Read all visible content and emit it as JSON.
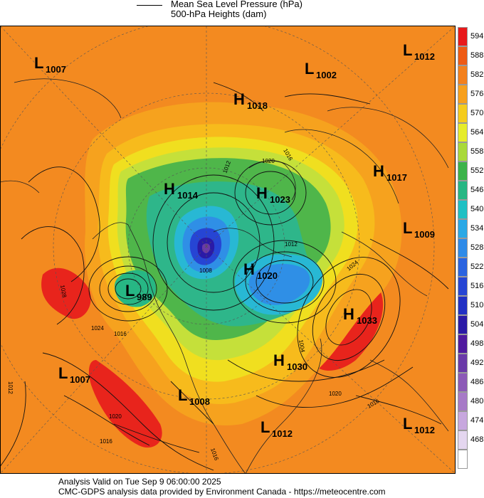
{
  "legend": {
    "line_label": "Mean Sea Level Pressure (hPa)",
    "fill_label": "500-hPa Heights (dam)"
  },
  "colorbar": {
    "levels": [
      {
        "label": "594",
        "color": "#e8191b"
      },
      {
        "label": "588",
        "color": "#ee5a14"
      },
      {
        "label": "582",
        "color": "#f3801c"
      },
      {
        "label": "576",
        "color": "#f7a01c"
      },
      {
        "label": "570",
        "color": "#f5cc1d"
      },
      {
        "label": "564",
        "color": "#e6ec2a"
      },
      {
        "label": "558",
        "color": "#a9d93a"
      },
      {
        "label": "552",
        "color": "#3bb34a"
      },
      {
        "label": "546",
        "color": "#27b784"
      },
      {
        "label": "540",
        "color": "#1fc0c4"
      },
      {
        "label": "534",
        "color": "#29a8e6"
      },
      {
        "label": "528",
        "color": "#2e8ae8"
      },
      {
        "label": "522",
        "color": "#2a63e0"
      },
      {
        "label": "516",
        "color": "#2645d4"
      },
      {
        "label": "510",
        "color": "#2130c4"
      },
      {
        "label": "504",
        "color": "#2a1aa6"
      },
      {
        "label": "498",
        "color": "#4f1a9e"
      },
      {
        "label": "492",
        "color": "#6a3aa8"
      },
      {
        "label": "486",
        "color": "#8c5ab7"
      },
      {
        "label": "480",
        "color": "#a77ac7"
      },
      {
        "label": "474",
        "color": "#c7a7de"
      },
      {
        "label": "468",
        "color": "#e4d6ef"
      },
      {
        "label": "",
        "color": "#ffffff"
      }
    ]
  },
  "pressure_centers": [
    {
      "type": "L",
      "value": "1007",
      "name": "low-1007-northwest"
    },
    {
      "type": "L",
      "value": "1002",
      "name": "low-1002-north"
    },
    {
      "type": "L",
      "value": "1012",
      "name": "low-1012-northeast"
    },
    {
      "type": "H",
      "value": "1018",
      "name": "high-1018-north"
    },
    {
      "type": "H",
      "value": "1017",
      "name": "high-1017-east"
    },
    {
      "type": "H",
      "value": "1014",
      "name": "high-1014-west"
    },
    {
      "type": "H",
      "value": "1023",
      "name": "high-1023-center"
    },
    {
      "type": "L",
      "value": "1009",
      "name": "low-1009-east"
    },
    {
      "type": "L",
      "value": "989",
      "name": "low-989-alaska"
    },
    {
      "type": "H",
      "value": "1020",
      "name": "high-1020-canada"
    },
    {
      "type": "H",
      "value": "1033",
      "name": "high-1033-atlantic"
    },
    {
      "type": "L",
      "value": "1007",
      "name": "low-1007-pacific"
    },
    {
      "type": "L",
      "value": "1008",
      "name": "low-1008-usa"
    },
    {
      "type": "H",
      "value": "1030",
      "name": "high-1030-canada-east"
    },
    {
      "type": "L",
      "value": "1012",
      "name": "low-1012-gulf"
    },
    {
      "type": "L",
      "value": "1012",
      "name": "low-1012-southeast"
    }
  ],
  "isobar_labels": [
    "1016",
    "1012",
    "1020",
    "1028",
    "1008",
    "1016",
    "1016",
    "1020",
    "1024",
    "1024",
    "1020",
    "1016",
    "1016",
    "1012",
    "1012",
    "1004"
  ],
  "footer": {
    "valid": "Analysis Valid on Tue Sep  9 06:00:00 2025",
    "source": "CMC-GDPS analysis data provided by Environment Canada - https://meteocentre.com"
  }
}
